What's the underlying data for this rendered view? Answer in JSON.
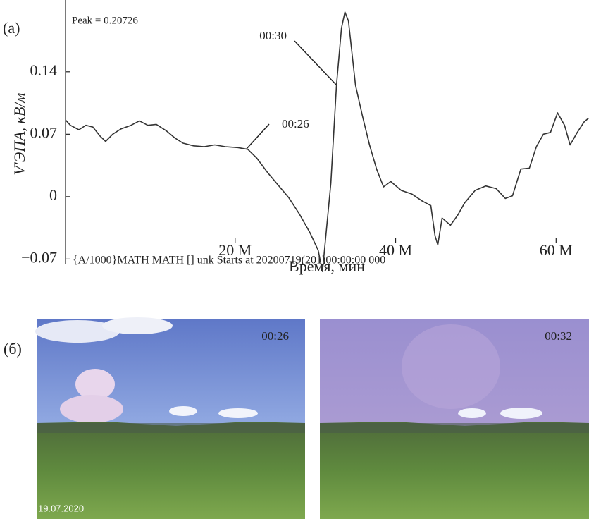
{
  "chart_data": {
    "type": "line",
    "panel_label": "(a)",
    "peak_label": "Peak = 0.20726",
    "footer_text": "{A/1000}MATH MATH [] unk Starts at 20200719(201)00:00:00 000",
    "x_label": "Время, мин",
    "y_label": "V′ЭПА, кВ/м",
    "annotations": [
      "00:30",
      "00:26"
    ],
    "color": "#333333",
    "x": [
      -1.14,
      -0.53,
      0.53,
      1.4,
      2.28,
      3.16,
      3.86,
      4.74,
      5.79,
      7.02,
      8.07,
      9.12,
      10.18,
      11.4,
      12.46,
      13.51,
      14.82,
      16.14,
      17.46,
      18.77,
      20.35,
      21.58,
      22.72,
      24.04,
      25.35,
      26.67,
      27.98,
      29.3,
      30.35,
      30.88,
      31.93,
      32.63,
      33.25,
      33.68,
      34.12,
      35.0,
      35.88,
      36.75,
      37.63,
      38.5,
      39.39,
      40.7,
      42.02,
      43.33,
      44.39,
      44.91,
      45.26,
      45.79,
      46.84,
      47.72,
      48.6,
      49.91,
      51.23,
      52.54,
      53.68,
      54.56,
      55.61,
      56.67,
      57.54,
      58.42,
      59.3,
      60.18,
      61.05,
      61.75,
      62.63,
      63.51,
      64.04
    ],
    "values": [
      0.086,
      0.08,
      0.075,
      0.08,
      0.078,
      0.068,
      0.062,
      0.07,
      0.076,
      0.08,
      0.085,
      0.08,
      0.081,
      0.074,
      0.066,
      0.06,
      0.057,
      0.056,
      0.058,
      0.056,
      0.055,
      0.053,
      0.043,
      0.027,
      0.013,
      -0.001,
      -0.019,
      -0.04,
      -0.06,
      -0.084,
      0.015,
      0.125,
      0.189,
      0.207,
      0.197,
      0.125,
      0.09,
      0.058,
      0.031,
      0.011,
      0.017,
      0.007,
      0.003,
      -0.005,
      -0.01,
      -0.044,
      -0.054,
      -0.024,
      -0.032,
      -0.021,
      -0.007,
      0.007,
      0.012,
      0.009,
      -0.002,
      0.001,
      0.031,
      0.032,
      0.056,
      0.07,
      0.072,
      0.094,
      0.08,
      0.058,
      0.072,
      0.084,
      0.088
    ],
    "xlim": [
      -1.14,
      64.1
    ],
    "ylim": [
      -0.076,
      0.211
    ],
    "xticks": [
      {
        "value": 20,
        "label": "20 M"
      },
      {
        "value": 40,
        "label": "40 M"
      },
      {
        "value": 60,
        "label": "60 M"
      }
    ],
    "yticks": [
      {
        "value": -0.07,
        "label": "−0.07"
      },
      0,
      0.07,
      0.14
    ]
  },
  "photos": {
    "panel_label": "(б)",
    "frames": [
      {
        "time": "00:26",
        "date": "19.07.2020"
      },
      {
        "time": "00:32"
      }
    ]
  }
}
